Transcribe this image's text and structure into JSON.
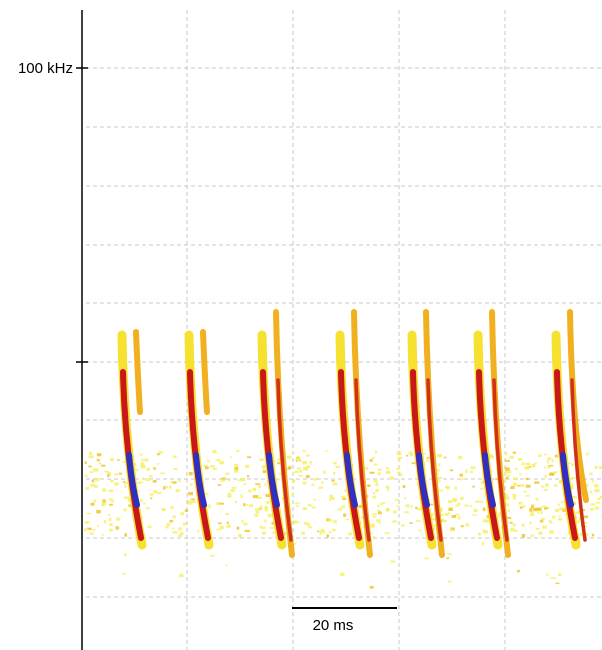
{
  "axis": {
    "label": "100 kHz"
  },
  "scale_bar": {
    "label": "20 ms"
  }
}
